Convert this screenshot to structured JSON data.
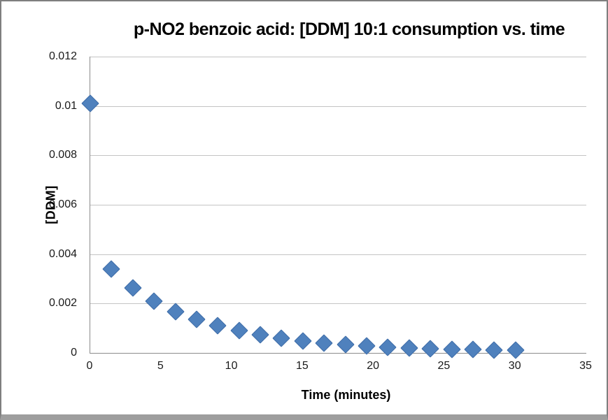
{
  "frame": {
    "border_color": "#7f7f7f",
    "bottom_bar_color": "#9e9e9e",
    "background": "#ffffff"
  },
  "chart_data": {
    "type": "scatter",
    "title": "p-NO2 benzoic acid: [DDM] 10:1 consumption vs. time",
    "xlabel": "Time (minutes)",
    "ylabel": "[DDM]",
    "xlim": [
      0,
      35
    ],
    "ylim": [
      0,
      0.012
    ],
    "grid": true,
    "legend": "none",
    "marker": "diamond",
    "marker_color": "#4f81bd",
    "marker_border_color": "#3f6da8",
    "gridline_color": "#c4c4c4",
    "axis_line_color": "#8c8c8c",
    "x_tick_labels": [
      "0",
      "5",
      "10",
      "15",
      "20",
      "25",
      "30",
      "35"
    ],
    "x_tick_values": [
      0,
      5,
      10,
      15,
      20,
      25,
      30,
      35
    ],
    "y_tick_labels": [
      "0",
      "0.002",
      "0.004",
      "0.006",
      "0.008",
      "0.01",
      "0.012"
    ],
    "y_tick_values": [
      0,
      0.002,
      0.004,
      0.006,
      0.008,
      0.01,
      0.012
    ],
    "x": [
      0,
      1.5,
      3,
      4.5,
      6,
      7.5,
      9,
      10.5,
      12,
      13.5,
      15,
      16.5,
      18,
      19.5,
      21,
      22.5,
      24,
      25.5,
      27,
      28.5,
      30
    ],
    "y": [
      0.0101,
      0.0034,
      0.00263,
      0.0021,
      0.00166,
      0.00135,
      0.00109,
      0.0009,
      0.00073,
      0.0006,
      0.00049,
      0.00041,
      0.00034,
      0.00028,
      0.00024,
      0.00021,
      0.00018,
      0.00015,
      0.00013,
      0.00011,
      0.0001
    ]
  }
}
